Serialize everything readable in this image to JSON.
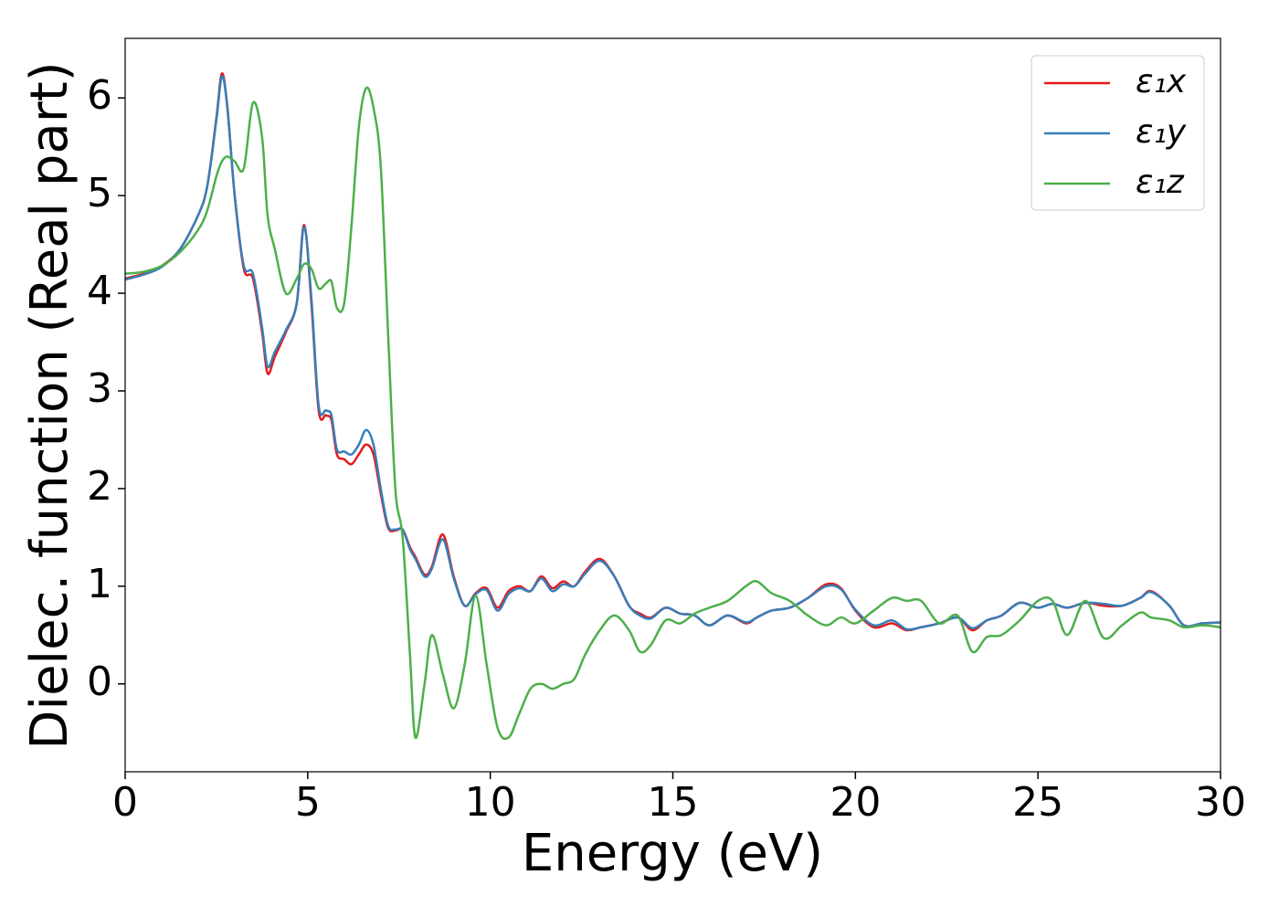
{
  "chart_data": {
    "type": "line",
    "xlabel": "Energy (eV)",
    "ylabel": "Dielec. function (Real part)",
    "xlim": [
      0,
      30
    ],
    "ylim": [
      -0.9,
      6.61
    ],
    "xticks": [
      0,
      5,
      10,
      15,
      20,
      25,
      30
    ],
    "yticks": [
      0,
      1,
      2,
      3,
      4,
      5,
      6
    ],
    "grid": false,
    "legend": "upper right",
    "x": [
      0,
      0.5,
      1,
      1.5,
      2,
      2.25,
      2.5,
      2.65,
      2.8,
      3,
      3.25,
      3.5,
      3.75,
      3.9,
      4.1,
      4.4,
      4.7,
      4.9,
      5.1,
      5.3,
      5.5,
      5.65,
      5.8,
      6,
      6.2,
      6.4,
      6.6,
      6.8,
      7,
      7.2,
      7.4,
      7.6,
      7.8,
      7.95,
      8.2,
      8.4,
      8.7,
      9,
      9.3,
      9.6,
      9.9,
      10.2,
      10.5,
      10.8,
      11.1,
      11.4,
      11.7,
      12,
      12.3,
      12.6,
      13,
      13.4,
      13.8,
      14.1,
      14.4,
      14.8,
      15.2,
      15.6,
      16,
      16.5,
      17,
      17.3,
      17.7,
      18.2,
      18.7,
      19.2,
      19.6,
      20,
      20.5,
      21,
      21.4,
      21.8,
      22.3,
      22.8,
      23.2,
      23.6,
      24,
      24.5,
      25,
      25.4,
      25.8,
      26.3,
      26.8,
      27.3,
      27.8,
      28.1,
      28.6,
      29,
      29.5,
      30
    ],
    "series": [
      {
        "name": "ε₁x",
        "color": "#e41a1c",
        "values": [
          4.15,
          4.2,
          4.28,
          4.45,
          4.8,
          5.1,
          5.8,
          6.25,
          5.9,
          5.0,
          4.25,
          4.15,
          3.6,
          3.18,
          3.35,
          3.6,
          3.9,
          4.7,
          3.9,
          2.8,
          2.75,
          2.7,
          2.35,
          2.3,
          2.25,
          2.35,
          2.45,
          2.35,
          1.95,
          1.6,
          1.57,
          1.58,
          1.4,
          1.3,
          1.12,
          1.2,
          1.53,
          1.1,
          0.8,
          0.93,
          0.98,
          0.78,
          0.95,
          1.0,
          0.95,
          1.1,
          0.98,
          1.05,
          1.0,
          1.15,
          1.28,
          1.1,
          0.8,
          0.72,
          0.68,
          0.78,
          0.72,
          0.7,
          0.6,
          0.7,
          0.62,
          0.68,
          0.75,
          0.78,
          0.88,
          1.02,
          0.98,
          0.75,
          0.58,
          0.62,
          0.55,
          0.58,
          0.62,
          0.68,
          0.55,
          0.65,
          0.7,
          0.83,
          0.78,
          0.82,
          0.78,
          0.83,
          0.8,
          0.8,
          0.88,
          0.95,
          0.8,
          0.6,
          0.62,
          0.63
        ]
      },
      {
        "name": "ε₁y",
        "color": "#377eb8",
        "values": [
          4.14,
          4.19,
          4.27,
          4.45,
          4.8,
          5.1,
          5.78,
          6.22,
          5.9,
          5.0,
          4.28,
          4.2,
          3.65,
          3.25,
          3.4,
          3.62,
          3.9,
          4.68,
          3.95,
          2.85,
          2.8,
          2.75,
          2.4,
          2.38,
          2.35,
          2.45,
          2.6,
          2.45,
          2.0,
          1.62,
          1.58,
          1.58,
          1.38,
          1.28,
          1.1,
          1.18,
          1.48,
          1.08,
          0.8,
          0.92,
          0.96,
          0.75,
          0.92,
          0.98,
          0.95,
          1.08,
          0.95,
          1.02,
          1.0,
          1.13,
          1.26,
          1.1,
          0.8,
          0.7,
          0.67,
          0.78,
          0.72,
          0.7,
          0.6,
          0.7,
          0.63,
          0.68,
          0.75,
          0.78,
          0.88,
          1.0,
          0.97,
          0.76,
          0.6,
          0.65,
          0.56,
          0.58,
          0.62,
          0.68,
          0.57,
          0.65,
          0.7,
          0.83,
          0.78,
          0.82,
          0.78,
          0.83,
          0.82,
          0.8,
          0.88,
          0.94,
          0.8,
          0.6,
          0.62,
          0.63
        ]
      },
      {
        "name": "ε₁z",
        "color": "#4daf4a",
        "values": [
          4.2,
          4.22,
          4.28,
          4.42,
          4.65,
          4.85,
          5.2,
          5.35,
          5.4,
          5.35,
          5.28,
          5.95,
          5.6,
          4.8,
          4.45,
          4.0,
          4.15,
          4.3,
          4.25,
          4.05,
          4.1,
          4.12,
          3.85,
          3.9,
          4.7,
          5.7,
          6.1,
          5.9,
          5.3,
          3.6,
          2.0,
          1.5,
          0.3,
          -0.55,
          0.0,
          0.5,
          0.1,
          -0.25,
          0.2,
          0.9,
          0.2,
          -0.45,
          -0.55,
          -0.3,
          -0.05,
          0.0,
          -0.05,
          0.0,
          0.05,
          0.3,
          0.55,
          0.7,
          0.55,
          0.33,
          0.4,
          0.65,
          0.62,
          0.72,
          0.78,
          0.85,
          1.0,
          1.05,
          0.93,
          0.85,
          0.7,
          0.6,
          0.68,
          0.62,
          0.75,
          0.88,
          0.85,
          0.85,
          0.62,
          0.7,
          0.33,
          0.48,
          0.5,
          0.65,
          0.85,
          0.85,
          0.5,
          0.85,
          0.47,
          0.6,
          0.73,
          0.68,
          0.65,
          0.58,
          0.6,
          0.58
        ]
      }
    ]
  }
}
